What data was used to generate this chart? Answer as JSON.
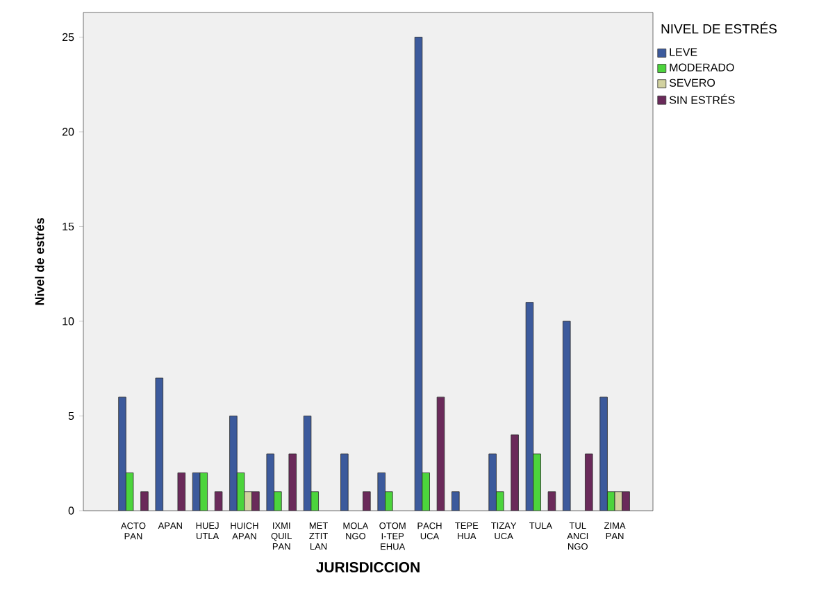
{
  "chart_data": {
    "type": "bar",
    "xlabel": "JURISDICCION",
    "ylabel": "Nivel de estrés",
    "legend_title": "NIVEL DE ESTRÉS",
    "legend": "top right",
    "grid": false,
    "categories": [
      "ACTOPAN",
      "APAN",
      "HUEJUTLA",
      "HUICHAPAN",
      "IXMIQUILPAN",
      "METZTITLAN",
      "MOLANGO",
      "OTOMI-TEPEHUA",
      "PACHUCA",
      "TEPEHUA",
      "TIZAYUCA",
      "TULA",
      "TULANCINGO",
      "ZIMAPAN"
    ],
    "ylim": [
      0,
      26.3
    ],
    "yticks": [
      0,
      5,
      10,
      15,
      20,
      25
    ],
    "series": [
      {
        "name": "LEVE",
        "color": "#3c5a9c",
        "values": [
          6,
          7,
          2,
          5,
          3,
          5,
          3,
          2,
          25,
          1,
          3,
          11,
          10,
          6
        ]
      },
      {
        "name": "MODERADO",
        "color": "#4cd43c",
        "values": [
          2,
          null,
          2,
          2,
          1,
          1,
          null,
          1,
          2,
          null,
          1,
          3,
          null,
          1
        ]
      },
      {
        "name": "SEVERO",
        "color": "#d2d2a0",
        "values": [
          null,
          null,
          null,
          1,
          null,
          null,
          null,
          null,
          null,
          null,
          null,
          null,
          null,
          1
        ]
      },
      {
        "name": "SIN ESTRÉS",
        "color": "#6a2a5a",
        "values": [
          1,
          2,
          1,
          1,
          3,
          null,
          1,
          null,
          6,
          null,
          4,
          1,
          3,
          1
        ]
      }
    ]
  }
}
